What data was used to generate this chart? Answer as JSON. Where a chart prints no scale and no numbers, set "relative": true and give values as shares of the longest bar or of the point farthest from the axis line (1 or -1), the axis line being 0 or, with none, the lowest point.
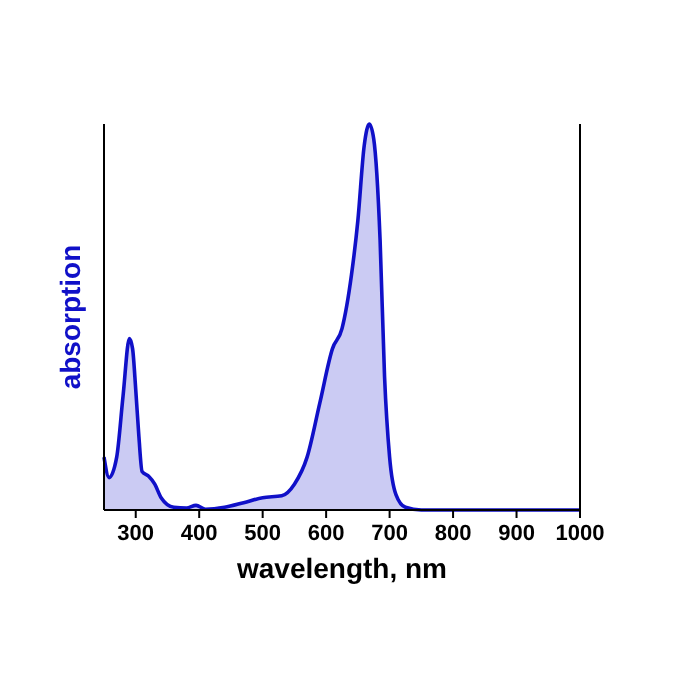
{
  "chart_data": {
    "type": "area",
    "xlabel": "wavelength, nm",
    "ylabel": "absorption",
    "relative": true,
    "xlim": [
      250,
      1000
    ],
    "xticks": [
      300,
      400,
      500,
      600,
      700,
      800,
      900,
      1000
    ],
    "grid": false,
    "series": [
      {
        "color": "#1010c8",
        "x": [
          250,
          258,
          270,
          280,
          290,
          295,
          300,
          305,
          310,
          320,
          330,
          340,
          360,
          380,
          395,
          410,
          440,
          470,
          500,
          530,
          550,
          570,
          590,
          610,
          625,
          640,
          650,
          660,
          668,
          675,
          685,
          692,
          700,
          710,
          725,
          750,
          1000
        ],
        "values": [
          0.137,
          0.084,
          0.137,
          0.295,
          0.444,
          0.418,
          0.312,
          0.19,
          0.1,
          0.088,
          0.067,
          0.032,
          0.007,
          0.005,
          0.012,
          0.002,
          0.007,
          0.019,
          0.032,
          0.037,
          0.067,
          0.137,
          0.277,
          0.418,
          0.47,
          0.61,
          0.75,
          0.944,
          1,
          0.961,
          0.7,
          0.347,
          0.137,
          0.04,
          0.007,
          0,
          0
        ]
      }
    ]
  }
}
